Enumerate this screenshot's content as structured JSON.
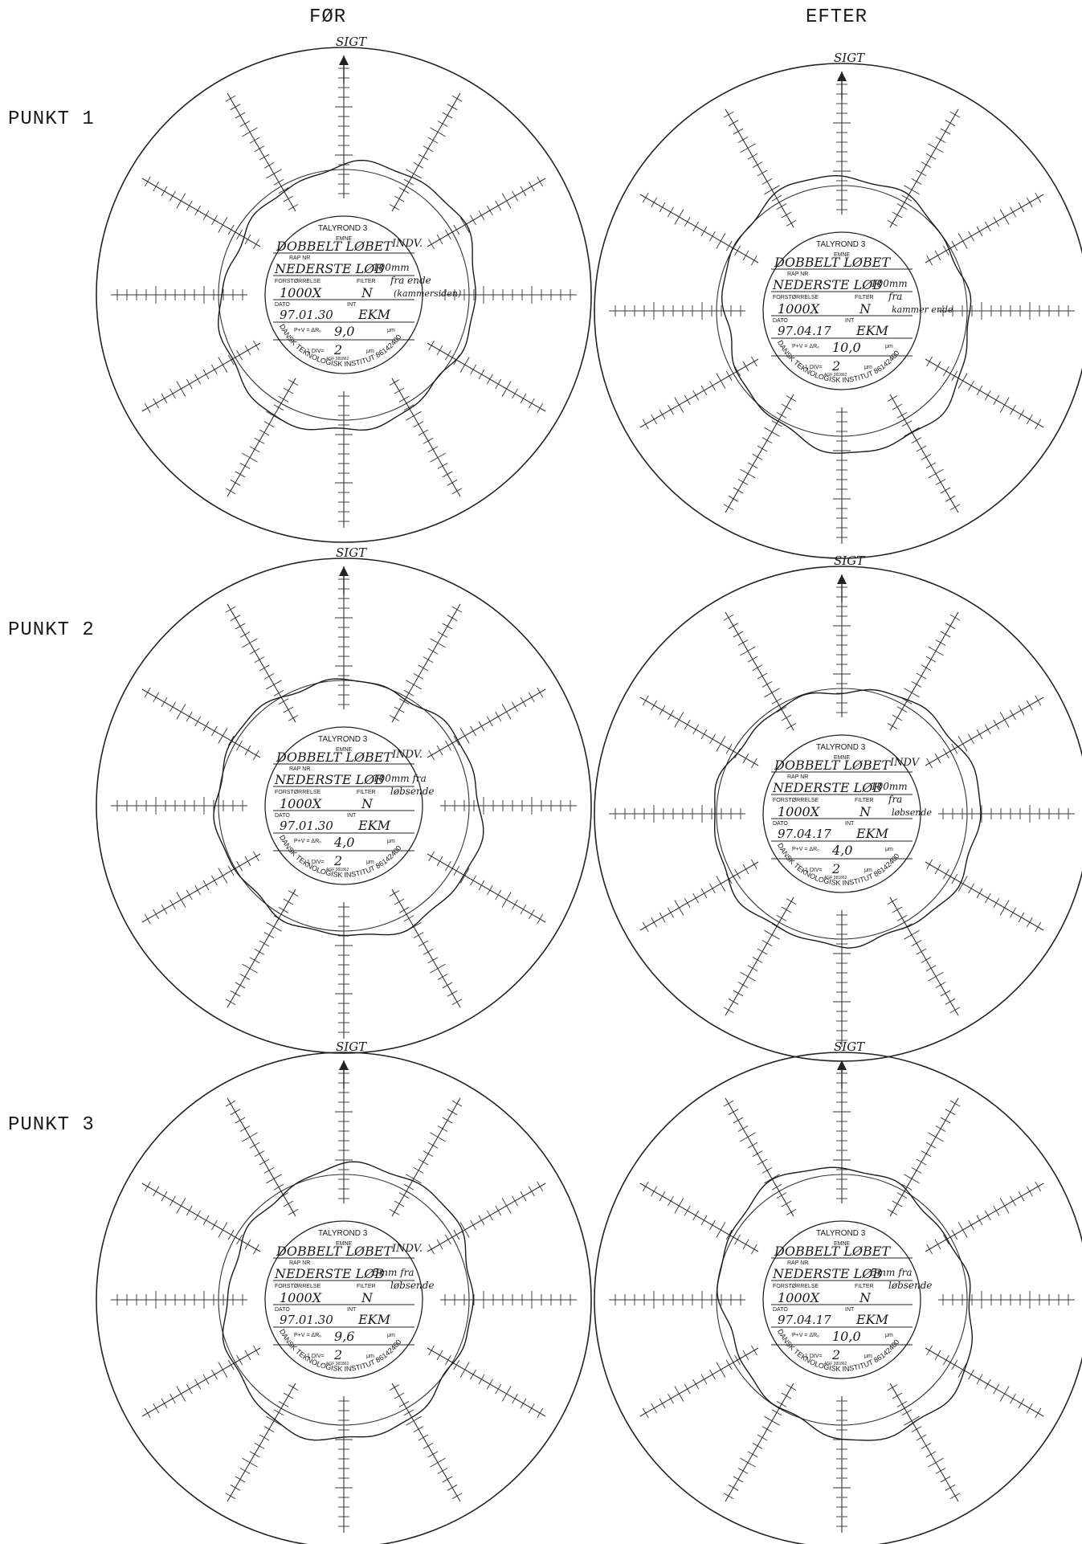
{
  "columns": [
    "FØR",
    "EFTER"
  ],
  "rows": [
    "PUNKT 1",
    "PUNKT 2",
    "PUNKT 3"
  ],
  "charts": [
    {
      "row": 0,
      "col": 0,
      "sight": "SIGT",
      "emne": "DOBBELT LØBET",
      "emne_note": "INDV.",
      "rap": "NEDERSTE LØB",
      "rap_note": "100mm",
      "note2": "fra ende",
      "note3": "(kammersiden)",
      "forst": "1000X",
      "filter": "N",
      "dato": "97.01.30",
      "init": "EKM",
      "pv": "9,0",
      "div": "2",
      "deform": 0.06
    },
    {
      "row": 0,
      "col": 1,
      "sight": "SIGT",
      "emne": "DOBBELT LØBET",
      "emne_note": "",
      "rap": "NEDERSTE LØB",
      "rap_note": "100mm",
      "note2": "fra",
      "note3": "kammer ende",
      "forst": "1000X",
      "filter": "N",
      "dato": "97.04.17",
      "init": "EKM",
      "pv": "10,0",
      "div": "2",
      "deform": 0.07
    },
    {
      "row": 1,
      "col": 0,
      "sight": "SIGT",
      "emne": "DOBBELT LØBET",
      "emne_note": "INDV.",
      "rap": "NEDERSTE LØB",
      "rap_note": "100mm fra",
      "note2": "løbsende",
      "note3": "",
      "forst": "1000X",
      "filter": "N",
      "dato": "97.01.30",
      "init": "EKM",
      "pv": "4,0",
      "div": "2",
      "deform": 0.03
    },
    {
      "row": 1,
      "col": 1,
      "sight": "SIGT",
      "emne": "DOBBELT LØBET",
      "emne_note": "INDV",
      "rap": "NEDERSTE LØB",
      "rap_note": "100mm",
      "note2": "fra",
      "note3": "løbsende",
      "forst": "1000X",
      "filter": "N",
      "dato": "97.04.17",
      "init": "EKM",
      "pv": "4,0",
      "div": "2",
      "deform": 0.03
    },
    {
      "row": 2,
      "col": 0,
      "sight": "SIGT",
      "emne": "DOBBELT LØBET",
      "emne_note": "INDV.",
      "rap": "NEDERSTE LØB",
      "rap_note": "5mm fra",
      "note2": "løbsende",
      "note3": "",
      "forst": "1000X",
      "filter": "N",
      "dato": "97.01.30",
      "init": "EKM",
      "pv": "9,6",
      "div": "2",
      "deform": 0.07
    },
    {
      "row": 2,
      "col": 1,
      "sight": "SIGT",
      "emne": "DOBBELT LØBET",
      "emne_note": "",
      "rap": "NEDERSTE LØB",
      "rap_note": "5mm fra",
      "note2": "løbsende",
      "note3": "",
      "forst": "1000X",
      "filter": "N",
      "dato": "97.04.17",
      "init": "EKM",
      "pv": "10,0",
      "div": "2",
      "deform": 0.08
    }
  ],
  "label": {
    "brand": "TALYROND 3",
    "emne": "EMNE",
    "rap": "RAP NR",
    "forst": "FORSTØRRELSE",
    "filter": "FILTER",
    "dato": "DATO",
    "init": "INT",
    "pv": "P+V = ΔRₒ",
    "um": "μm",
    "div": "1 DIV=",
    "ref": "AGF 381862",
    "institute": "DANSK TEKNOLOGISK INSTITUT 86142400"
  }
}
